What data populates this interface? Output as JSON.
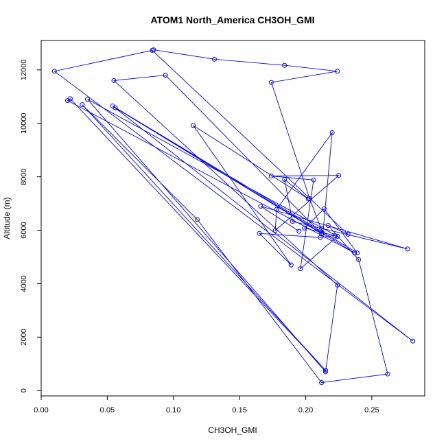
{
  "chart_data": {
    "type": "line",
    "title": "ATOM1 North_America CH3OH_GMI",
    "xlabel": "CH3OH_GMI",
    "ylabel": "Altitude (m)",
    "xlim": [
      0.0,
      0.29
    ],
    "ylim": [
      -200,
      13100
    ],
    "x_ticks": [
      {
        "value": 0.0,
        "label": "0.00"
      },
      {
        "value": 0.05,
        "label": "0.05"
      },
      {
        "value": 0.1,
        "label": "0.10"
      },
      {
        "value": 0.15,
        "label": "0.15"
      },
      {
        "value": 0.2,
        "label": "0.20"
      },
      {
        "value": 0.25,
        "label": "0.25"
      }
    ],
    "y_ticks": [
      {
        "value": 0,
        "label": "0"
      },
      {
        "value": 2000,
        "label": "2000"
      },
      {
        "value": 4000,
        "label": "4000"
      },
      {
        "value": 6000,
        "label": "6000"
      },
      {
        "value": 8000,
        "label": "8000"
      },
      {
        "value": 10000,
        "label": "10000"
      },
      {
        "value": 12000,
        "label": "12000"
      }
    ],
    "grid": false,
    "legend": "none",
    "series_color": "#0000ff",
    "series": [
      {
        "x": [
          0.085,
          0.131,
          0.184,
          0.224,
          0.174,
          0.203,
          0.213,
          0.22,
          0.178,
          0.177,
          0.225,
          0.174,
          0.206,
          0.196,
          0.224,
          0.035,
          0.215,
          0.224,
          0.055,
          0.094,
          0.212,
          0.056,
          0.237,
          0.02,
          0.022,
          0.215,
          0.031,
          0.118,
          0.212,
          0.262,
          0.24,
          0.217,
          0.232,
          0.084,
          0.01,
          0.281,
          0.054,
          0.239,
          0.214,
          0.199,
          0.222,
          0.211,
          0.165,
          0.189,
          0.115,
          0.202,
          0.184,
          0.19,
          0.212,
          0.277,
          0.166,
          0.195
        ],
        "y": [
          12750,
          12400,
          12170,
          11950,
          11530,
          7180,
          5880,
          9650,
          6780,
          5990,
          8050,
          8030,
          7880,
          4560,
          5770,
          10900,
          700,
          3950,
          11600,
          11800,
          5870,
          10580,
          5150,
          10850,
          10920,
          760,
          10700,
          6400,
          300,
          620,
          4900,
          6180,
          5850,
          12730,
          11950,
          1850,
          10650,
          5150,
          6800,
          6080,
          5800,
          5730,
          5880,
          4700,
          9920,
          7170,
          7900,
          6330,
          6070,
          5300,
          6900,
          5960
        ]
      }
    ]
  }
}
